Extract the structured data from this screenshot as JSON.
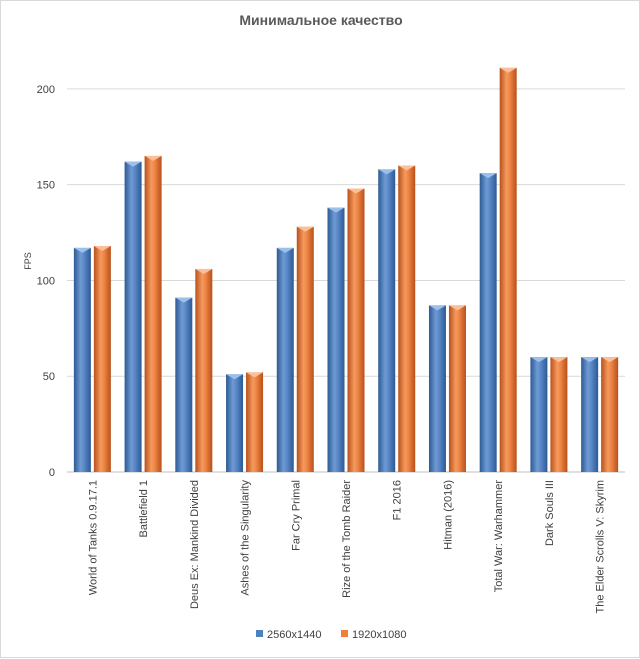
{
  "chart_data": {
    "type": "bar",
    "title": "Минимальное качество",
    "ylabel": "FPS",
    "xlabel": "",
    "ylim": [
      0,
      225
    ],
    "yticks": [
      0,
      50,
      100,
      150,
      200
    ],
    "grid": true,
    "legend_position": "bottom",
    "categories": [
      "World of Tanks 0.9.17.1",
      "Battlefield 1",
      "Deus Ex: Mankind Divided",
      "Ashes of the Singularity",
      "Far Cry Primal",
      "Rize of the Tomb Raider",
      "F1 2016",
      "Hitman (2016)",
      "Total War: Warhammer",
      "Dark Souls III",
      "The Elder Scrolls V: Skyrim"
    ],
    "series": [
      {
        "name": "2560x1440",
        "color": "#4f81bd",
        "values": [
          117,
          162,
          91,
          51,
          117,
          138,
          158,
          87,
          156,
          60,
          60
        ]
      },
      {
        "name": "1920x1080",
        "color": "#f07f3c",
        "values": [
          118,
          165,
          106,
          52,
          128,
          148,
          160,
          87,
          211,
          60,
          60
        ]
      }
    ]
  }
}
